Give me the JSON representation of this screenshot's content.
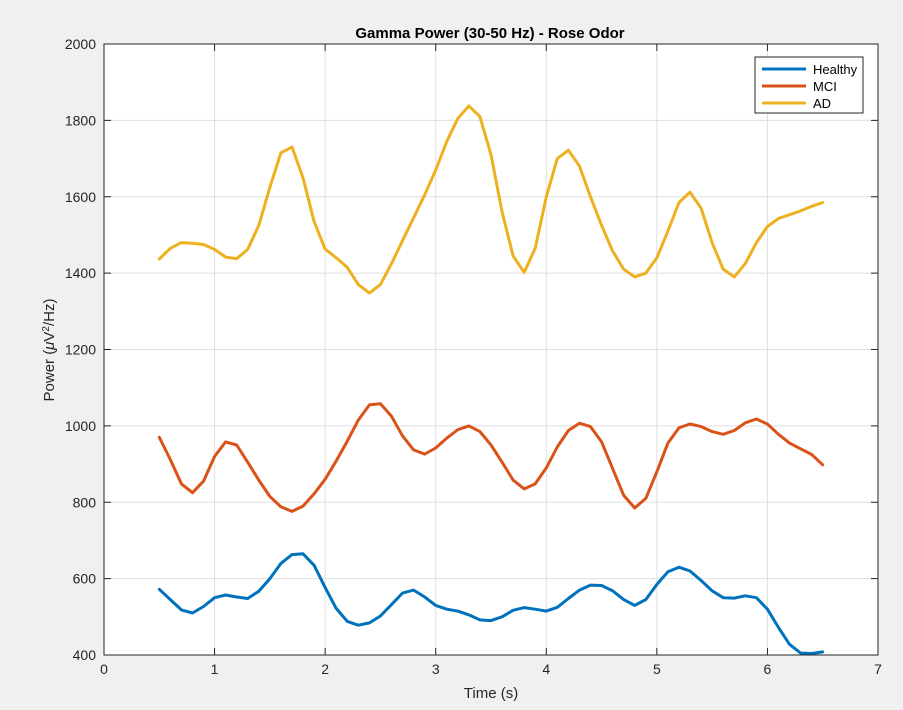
{
  "chart_data": {
    "type": "line",
    "title": "Gamma Power (30-50 Hz) - Rose Odor",
    "xlabel": "Time (s)",
    "ylabel": "Power (μV²/Hz)",
    "ylabel_parts": {
      "before": "Power (",
      "mu": "μ",
      "unit": "V",
      "sup": "2",
      "after": "/Hz)"
    },
    "xlim": [
      0,
      7
    ],
    "ylim": [
      400,
      2000
    ],
    "xticks": [
      "0",
      "1",
      "2",
      "3",
      "4",
      "5",
      "6",
      "7"
    ],
    "yticks": [
      "400",
      "600",
      "800",
      "1000",
      "1200",
      "1400",
      "1600",
      "1800",
      "2000"
    ],
    "grid": true,
    "legend_position": "top-right",
    "x": [
      0.5,
      0.6,
      0.7,
      0.8,
      0.9,
      1.0,
      1.1,
      1.2,
      1.3,
      1.4,
      1.5,
      1.6,
      1.7,
      1.8,
      1.9,
      2.0,
      2.1,
      2.2,
      2.3,
      2.4,
      2.5,
      2.6,
      2.7,
      2.8,
      2.9,
      3.0,
      3.1,
      3.2,
      3.3,
      3.4,
      3.5,
      3.6,
      3.7,
      3.8,
      3.9,
      4.0,
      4.1,
      4.2,
      4.3,
      4.4,
      4.5,
      4.6,
      4.7,
      4.8,
      4.9,
      5.0,
      5.1,
      5.2,
      5.3,
      5.4,
      5.5,
      5.6,
      5.7,
      5.8,
      5.9,
      6.0,
      6.1,
      6.2,
      6.3,
      6.4,
      6.5
    ],
    "series": [
      {
        "name": "Healthy",
        "color": "#0072BD",
        "values": [
          572,
          545,
          518,
          510,
          527,
          550,
          557,
          552,
          548,
          567,
          600,
          640,
          663,
          665,
          635,
          577,
          522,
          488,
          478,
          484,
          502,
          532,
          562,
          570,
          552,
          530,
          520,
          515,
          505,
          492,
          490,
          500,
          517,
          524,
          520,
          515,
          525,
          548,
          570,
          583,
          582,
          568,
          545,
          530,
          545,
          585,
          618,
          630,
          620,
          595,
          568,
          550,
          549,
          555,
          550,
          520,
          472,
          428,
          405,
          404,
          408
        ]
      },
      {
        "name": "MCI",
        "color": "#D95319",
        "values": [
          970,
          912,
          848,
          825,
          855,
          920,
          958,
          950,
          905,
          858,
          815,
          788,
          776,
          790,
          822,
          860,
          908,
          960,
          1015,
          1055,
          1058,
          1025,
          974,
          937,
          926,
          942,
          968,
          990,
          1000,
          985,
          950,
          905,
          858,
          835,
          848,
          890,
          945,
          988,
          1007,
          998,
          958,
          888,
          818,
          785,
          810,
          880,
          955,
          995,
          1005,
          998,
          985,
          978,
          988,
          1008,
          1018,
          1005,
          978,
          955,
          940,
          925,
          898
        ]
      },
      {
        "name": "AD",
        "color": "#EDB120",
        "values": [
          1437,
          1465,
          1480,
          1478,
          1475,
          1462,
          1442,
          1438,
          1462,
          1525,
          1625,
          1715,
          1730,
          1650,
          1535,
          1463,
          1440,
          1415,
          1370,
          1348,
          1370,
          1425,
          1485,
          1545,
          1605,
          1670,
          1745,
          1805,
          1838,
          1810,
          1710,
          1560,
          1445,
          1402,
          1465,
          1600,
          1700,
          1722,
          1680,
          1600,
          1525,
          1458,
          1410,
          1390,
          1400,
          1440,
          1510,
          1585,
          1612,
          1570,
          1480,
          1410,
          1390,
          1425,
          1480,
          1522,
          1543,
          1553,
          1563,
          1575,
          1585
        ]
      }
    ]
  }
}
